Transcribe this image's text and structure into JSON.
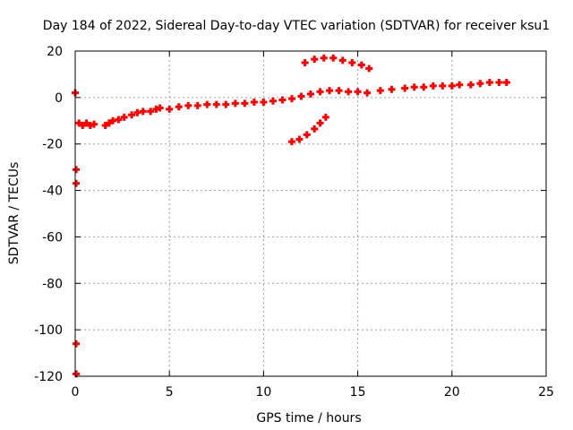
{
  "chart_data": {
    "type": "scatter",
    "title": "Day 184 of 2022, Sidereal Day-to-day VTEC variation (SDTVAR) for receiver ksu1",
    "xlabel": "GPS time / hours",
    "ylabel": "SDTVAR / TECUs",
    "xlim": [
      0,
      25
    ],
    "ylim": [
      -120,
      20
    ],
    "xticks": [
      0,
      5,
      10,
      15,
      20,
      25
    ],
    "yticks": [
      -120,
      -100,
      -80,
      -60,
      -40,
      -20,
      0,
      20
    ],
    "grid": true,
    "marker_color": "#ff0000",
    "series": [
      {
        "points": [
          [
            0.0,
            2
          ],
          [
            0.05,
            -31
          ],
          [
            0.05,
            -37
          ],
          [
            0.05,
            -106
          ],
          [
            0.05,
            -119
          ],
          [
            0.2,
            -11
          ],
          [
            0.4,
            -12
          ],
          [
            0.6,
            -11
          ],
          [
            0.8,
            -12
          ],
          [
            1.0,
            -11.5
          ],
          [
            1.6,
            -12
          ],
          [
            1.8,
            -11
          ],
          [
            2.0,
            -10
          ],
          [
            2.3,
            -9.5
          ],
          [
            2.6,
            -8.5
          ],
          [
            3.0,
            -7.5
          ],
          [
            3.3,
            -6.5
          ],
          [
            3.6,
            -6
          ],
          [
            4.0,
            -6
          ],
          [
            4.3,
            -5
          ],
          [
            4.5,
            -4.5
          ],
          [
            5.0,
            -5
          ],
          [
            5.5,
            -4
          ],
          [
            6.0,
            -3.5
          ],
          [
            6.5,
            -3.5
          ],
          [
            7.0,
            -3
          ],
          [
            7.5,
            -3
          ],
          [
            8.0,
            -3
          ],
          [
            8.5,
            -2.5
          ],
          [
            9.0,
            -2.5
          ],
          [
            9.5,
            -2
          ],
          [
            10.0,
            -2
          ],
          [
            10.5,
            -1.5
          ],
          [
            11.0,
            -1
          ],
          [
            11.5,
            -0.5
          ],
          [
            12.0,
            0.5
          ],
          [
            12.5,
            1.5
          ],
          [
            13.0,
            2.5
          ],
          [
            13.5,
            3
          ],
          [
            14.0,
            3
          ],
          [
            14.5,
            2.5
          ],
          [
            15.0,
            2.5
          ],
          [
            15.5,
            2
          ],
          [
            12.2,
            15
          ],
          [
            12.7,
            16.5
          ],
          [
            13.2,
            17
          ],
          [
            13.7,
            17
          ],
          [
            14.2,
            16
          ],
          [
            14.7,
            15
          ],
          [
            15.2,
            14
          ],
          [
            15.6,
            12.5
          ],
          [
            11.5,
            -19
          ],
          [
            11.9,
            -18
          ],
          [
            12.3,
            -16
          ],
          [
            12.7,
            -13.5
          ],
          [
            13.0,
            -11
          ],
          [
            13.3,
            -8.5
          ],
          [
            16.2,
            3
          ],
          [
            16.8,
            3.5
          ],
          [
            17.5,
            4
          ],
          [
            18.0,
            4.5
          ],
          [
            18.5,
            4.5
          ],
          [
            19.0,
            5
          ],
          [
            19.5,
            5
          ],
          [
            20.0,
            5
          ],
          [
            20.4,
            5.5
          ],
          [
            21.0,
            5.5
          ],
          [
            21.5,
            6
          ],
          [
            22.0,
            6.5
          ],
          [
            22.5,
            6.5
          ],
          [
            22.9,
            6.5
          ]
        ]
      }
    ]
  }
}
